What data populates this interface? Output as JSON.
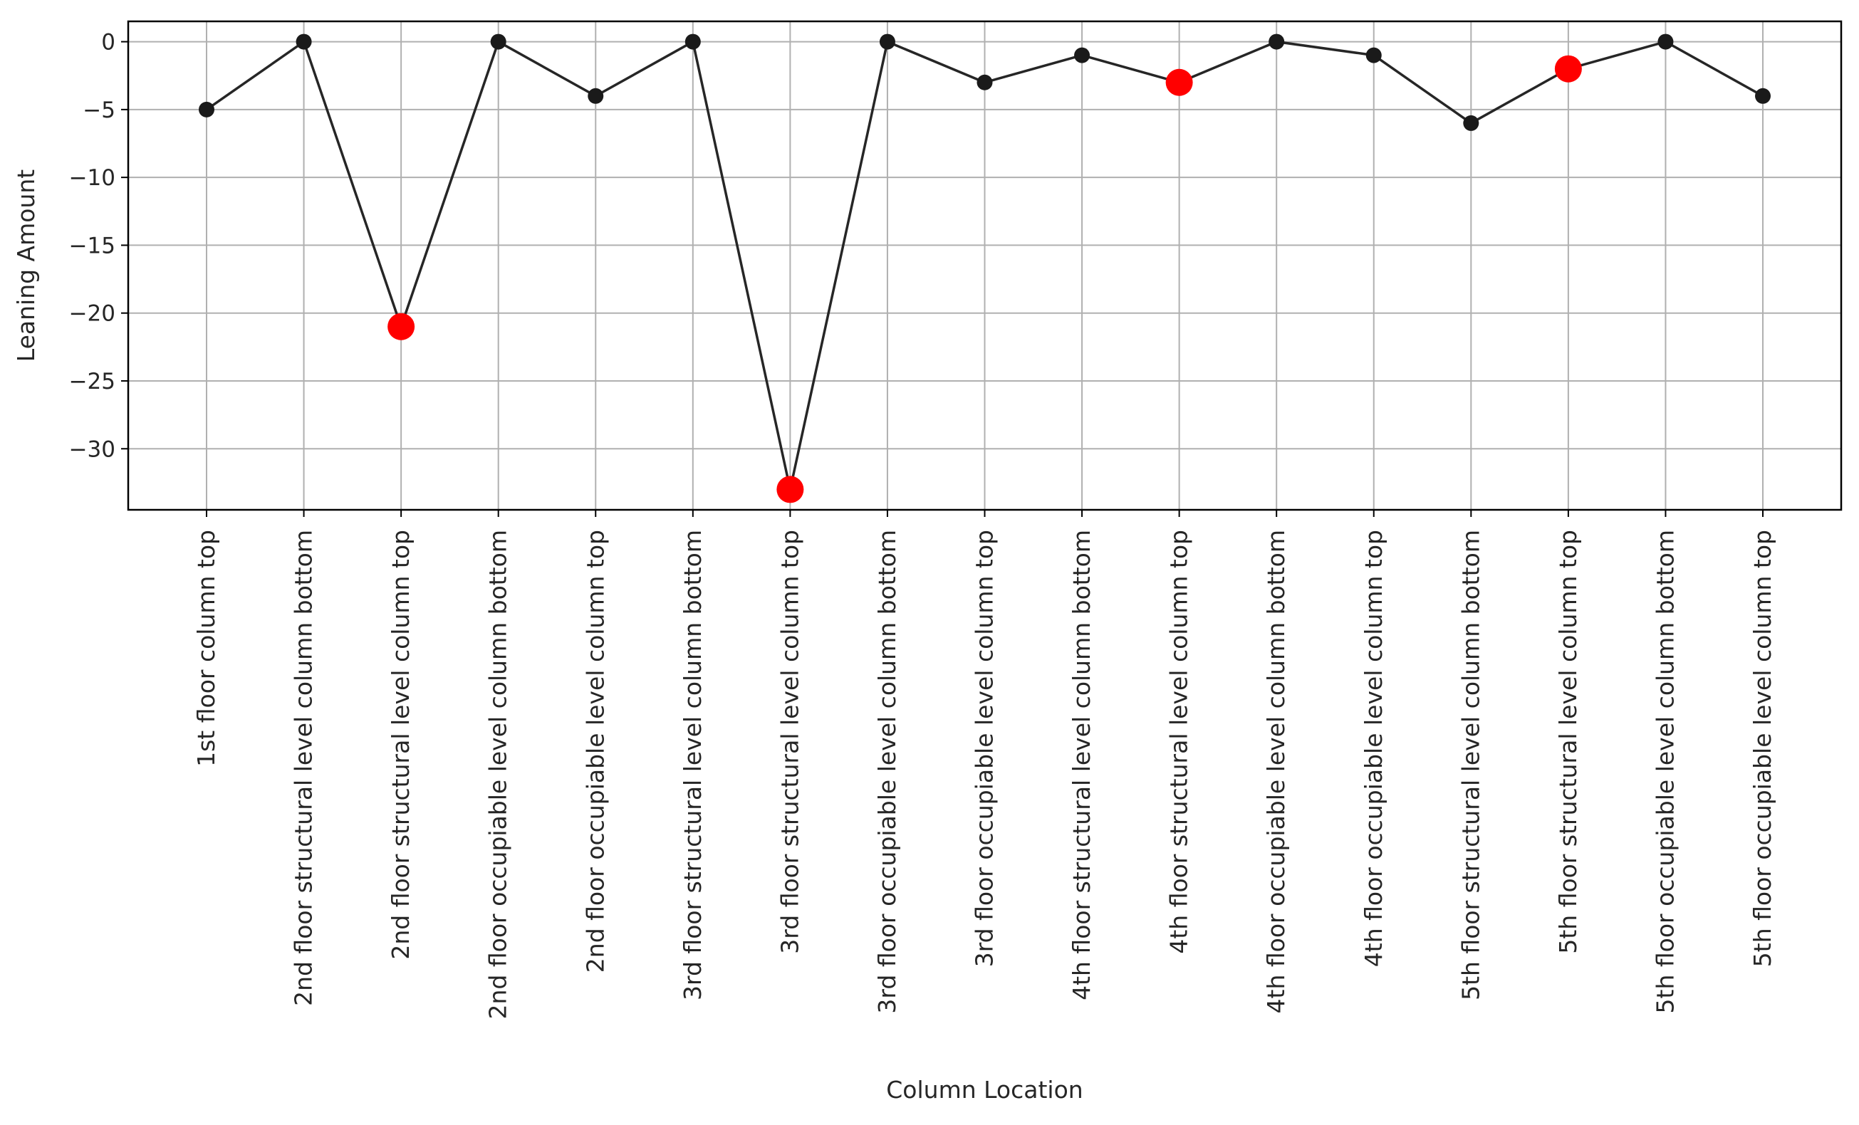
{
  "chart_data": {
    "type": "line",
    "xlabel": "Column Location",
    "ylabel": "Leaning Amount",
    "categories": [
      "1st floor column top",
      "2nd floor structural level column bottom",
      "2nd floor structural level column top",
      "2nd floor occupiable level column bottom",
      "2nd floor occupiable level column top",
      "3rd floor structural level column bottom",
      "3rd floor structural level column top",
      "3rd floor occupiable level column bottom",
      "3rd floor occupiable level column top",
      "4th floor structural level column bottom",
      "4th floor structural level column top",
      "4th floor occupiable level column bottom",
      "4th floor occupiable level column top",
      "5th floor structural level column bottom",
      "5th floor structural level column top",
      "5th floor occupiable level column bottom",
      "5th floor occupiable level column top"
    ],
    "values": [
      -5,
      0,
      -21,
      0,
      -4,
      0,
      -33,
      0,
      -3,
      -1,
      -3,
      0,
      -1,
      -6,
      -2,
      0,
      -4
    ],
    "highlighted_indices": [
      2,
      6,
      10,
      14
    ],
    "ylim": [
      -34.5,
      1.5
    ],
    "yticks": [
      0,
      -5,
      -10,
      -15,
      -20,
      -25,
      -30
    ],
    "grid": true,
    "colors": {
      "line": "#262626",
      "marker": "#1a1a1a",
      "highlight": "#ff0000",
      "grid": "#b0b0b0",
      "axis": "#000000"
    }
  }
}
